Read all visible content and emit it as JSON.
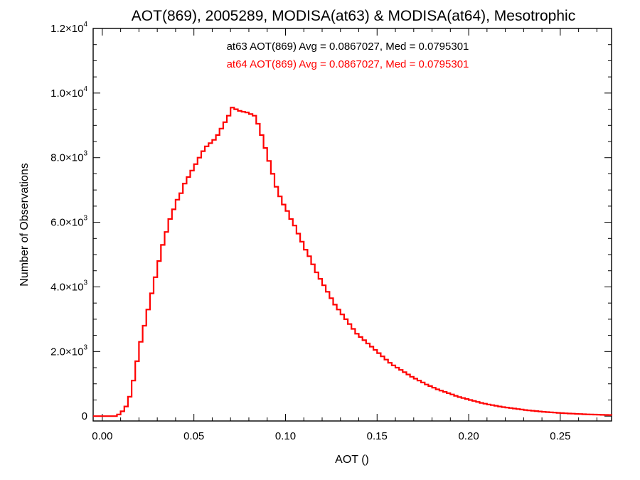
{
  "chart_data": {
    "type": "histogram",
    "title": "AOT(869), 2005289, MODISA(at63) & MODISA(at64), Mesotrophic",
    "xlabel": "AOT ()",
    "ylabel": "Number of Observations",
    "xlim": [
      -0.005,
      0.278
    ],
    "ylim": [
      -150,
      12000
    ],
    "x_ticks": [
      {
        "value": 0.0,
        "label": "0.00"
      },
      {
        "value": 0.05,
        "label": "0.05"
      },
      {
        "value": 0.1,
        "label": "0.10"
      },
      {
        "value": 0.15,
        "label": "0.15"
      },
      {
        "value": 0.2,
        "label": "0.20"
      },
      {
        "value": 0.25,
        "label": "0.25"
      }
    ],
    "y_ticks": [
      {
        "value": 0,
        "mantissa": "0",
        "exponent": ""
      },
      {
        "value": 2000,
        "mantissa": "2.0×10",
        "exponent": "3"
      },
      {
        "value": 4000,
        "mantissa": "4.0×10",
        "exponent": "3"
      },
      {
        "value": 6000,
        "mantissa": "6.0×10",
        "exponent": "3"
      },
      {
        "value": 8000,
        "mantissa": "8.0×10",
        "exponent": "3"
      },
      {
        "value": 10000,
        "mantissa": "1.0×10",
        "exponent": "4"
      },
      {
        "value": 12000,
        "mantissa": "1.2×10",
        "exponent": "4"
      }
    ],
    "annotations": [
      {
        "text": "at63 AOT(869) Avg = 0.0867027, Med = 0.0795301",
        "color": "#000000"
      },
      {
        "text": "at64 AOT(869) Avg = 0.0867027, Med = 0.0795301",
        "color": "#ff0000"
      }
    ],
    "series": [
      {
        "color": "#ff0000",
        "step": true,
        "points": [
          [
            -0.005,
            0
          ],
          [
            0.006,
            0
          ],
          [
            0.008,
            50
          ],
          [
            0.01,
            150
          ],
          [
            0.012,
            300
          ],
          [
            0.014,
            600
          ],
          [
            0.016,
            1100
          ],
          [
            0.018,
            1700
          ],
          [
            0.02,
            2300
          ],
          [
            0.022,
            2800
          ],
          [
            0.024,
            3300
          ],
          [
            0.026,
            3800
          ],
          [
            0.028,
            4300
          ],
          [
            0.03,
            4800
          ],
          [
            0.032,
            5300
          ],
          [
            0.034,
            5700
          ],
          [
            0.036,
            6100
          ],
          [
            0.038,
            6400
          ],
          [
            0.04,
            6700
          ],
          [
            0.042,
            6900
          ],
          [
            0.044,
            7200
          ],
          [
            0.046,
            7400
          ],
          [
            0.048,
            7600
          ],
          [
            0.05,
            7800
          ],
          [
            0.052,
            8000
          ],
          [
            0.054,
            8200
          ],
          [
            0.056,
            8350
          ],
          [
            0.058,
            8450
          ],
          [
            0.06,
            8550
          ],
          [
            0.062,
            8700
          ],
          [
            0.064,
            8900
          ],
          [
            0.066,
            9100
          ],
          [
            0.068,
            9300
          ],
          [
            0.07,
            9550
          ],
          [
            0.072,
            9500
          ],
          [
            0.074,
            9450
          ],
          [
            0.076,
            9420
          ],
          [
            0.078,
            9400
          ],
          [
            0.08,
            9350
          ],
          [
            0.082,
            9300
          ],
          [
            0.084,
            9050
          ],
          [
            0.086,
            8700
          ],
          [
            0.088,
            8300
          ],
          [
            0.09,
            7900
          ],
          [
            0.092,
            7500
          ],
          [
            0.094,
            7100
          ],
          [
            0.096,
            6800
          ],
          [
            0.098,
            6550
          ],
          [
            0.1,
            6350
          ],
          [
            0.102,
            6100
          ],
          [
            0.104,
            5900
          ],
          [
            0.106,
            5650
          ],
          [
            0.108,
            5400
          ],
          [
            0.11,
            5150
          ],
          [
            0.112,
            4950
          ],
          [
            0.114,
            4700
          ],
          [
            0.116,
            4450
          ],
          [
            0.118,
            4250
          ],
          [
            0.12,
            4050
          ],
          [
            0.122,
            3850
          ],
          [
            0.124,
            3650
          ],
          [
            0.126,
            3450
          ],
          [
            0.128,
            3300
          ],
          [
            0.13,
            3150
          ],
          [
            0.132,
            3000
          ],
          [
            0.134,
            2850
          ],
          [
            0.136,
            2700
          ],
          [
            0.138,
            2550
          ],
          [
            0.14,
            2450
          ],
          [
            0.142,
            2350
          ],
          [
            0.144,
            2250
          ],
          [
            0.146,
            2150
          ],
          [
            0.148,
            2050
          ],
          [
            0.15,
            1950
          ],
          [
            0.152,
            1850
          ],
          [
            0.154,
            1750
          ],
          [
            0.156,
            1650
          ],
          [
            0.158,
            1570
          ],
          [
            0.16,
            1500
          ],
          [
            0.162,
            1430
          ],
          [
            0.164,
            1360
          ],
          [
            0.166,
            1290
          ],
          [
            0.168,
            1220
          ],
          [
            0.17,
            1160
          ],
          [
            0.172,
            1100
          ],
          [
            0.174,
            1040
          ],
          [
            0.176,
            980
          ],
          [
            0.178,
            930
          ],
          [
            0.18,
            880
          ],
          [
            0.182,
            830
          ],
          [
            0.184,
            790
          ],
          [
            0.186,
            750
          ],
          [
            0.188,
            710
          ],
          [
            0.19,
            670
          ],
          [
            0.192,
            630
          ],
          [
            0.194,
            590
          ],
          [
            0.196,
            560
          ],
          [
            0.198,
            530
          ],
          [
            0.2,
            500
          ],
          [
            0.202,
            470
          ],
          [
            0.204,
            440
          ],
          [
            0.206,
            410
          ],
          [
            0.208,
            385
          ],
          [
            0.21,
            360
          ],
          [
            0.212,
            340
          ],
          [
            0.214,
            320
          ],
          [
            0.216,
            300
          ],
          [
            0.218,
            280
          ],
          [
            0.22,
            265
          ],
          [
            0.222,
            250
          ],
          [
            0.224,
            235
          ],
          [
            0.226,
            220
          ],
          [
            0.228,
            205
          ],
          [
            0.23,
            190
          ],
          [
            0.232,
            178
          ],
          [
            0.234,
            166
          ],
          [
            0.236,
            155
          ],
          [
            0.238,
            145
          ],
          [
            0.24,
            135
          ],
          [
            0.242,
            126
          ],
          [
            0.244,
            118
          ],
          [
            0.246,
            110
          ],
          [
            0.248,
            102
          ],
          [
            0.25,
            95
          ],
          [
            0.252,
            88
          ],
          [
            0.254,
            82
          ],
          [
            0.256,
            76
          ],
          [
            0.258,
            70
          ],
          [
            0.26,
            65
          ],
          [
            0.262,
            60
          ],
          [
            0.264,
            55
          ],
          [
            0.266,
            51
          ],
          [
            0.268,
            47
          ],
          [
            0.27,
            43
          ],
          [
            0.272,
            40
          ],
          [
            0.274,
            37
          ],
          [
            0.276,
            34
          ],
          [
            0.278,
            31
          ]
        ]
      }
    ]
  }
}
